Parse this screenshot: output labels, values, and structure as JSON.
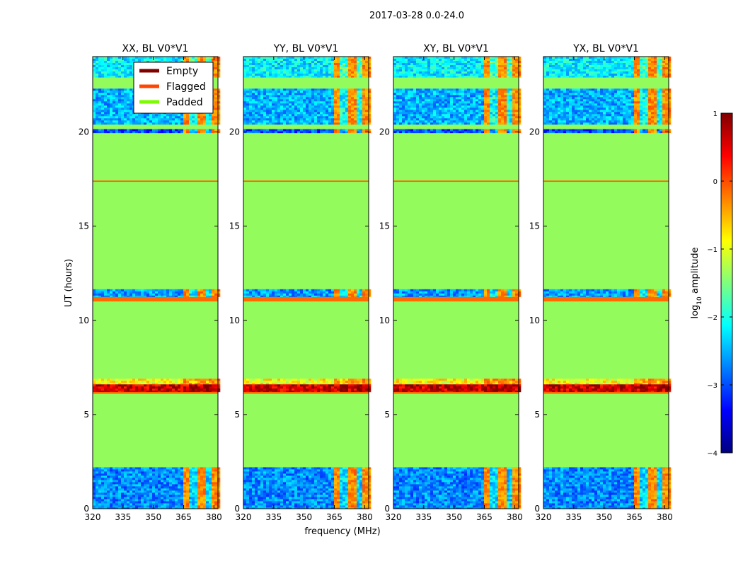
{
  "suptitle": "2017-03-28 0.0-24.0",
  "chart_data": {
    "type": "heatmap",
    "panels": [
      {
        "title": "XX, BL V0*V1"
      },
      {
        "title": "YY, BL V0*V1"
      },
      {
        "title": "XY, BL V0*V1"
      },
      {
        "title": "YX, BL V0*V1"
      }
    ],
    "xlabel": "frequency (MHz)",
    "ylabel": "UT (hours)",
    "xlim": [
      320,
      382
    ],
    "ylim": [
      0,
      24
    ],
    "xticks": [
      320,
      335,
      350,
      365,
      380
    ],
    "yticks": [
      0,
      5,
      10,
      15,
      20
    ],
    "bright_band_mhz": [
      364,
      382
    ],
    "legend": {
      "placement": "upper-right of first panel",
      "entries": [
        {
          "label": "Empty",
          "color": "#800000"
        },
        {
          "label": "Flagged",
          "color": "#ff4500"
        },
        {
          "label": "Padded",
          "color": "#7cfc00"
        }
      ]
    },
    "colorbar": {
      "label": "log10 amplitude",
      "label_main": "log",
      "label_sub": "10",
      "label_rest": " amplitude",
      "range": [
        -4,
        1
      ],
      "ticks": [
        "1",
        "0",
        "−1",
        "−2",
        "−3",
        "−4"
      ],
      "tick_values": [
        1,
        0,
        -1,
        -2,
        -3,
        -4
      ]
    },
    "padded_color": "#94fb5c",
    "flagged_color": "#ff6a00",
    "features": [
      {
        "kind": "data",
        "ut_start": 0.0,
        "ut_end": 2.2,
        "level": -2.7
      },
      {
        "kind": "data",
        "ut_start": 6.6,
        "ut_end": 6.9,
        "level": -0.9
      },
      {
        "kind": "data",
        "ut_start": 6.2,
        "ut_end": 6.6,
        "level": 0.6
      },
      {
        "kind": "flagged",
        "ut_start": 6.1,
        "ut_end": 6.2
      },
      {
        "kind": "flagged",
        "ut_start": 11.0,
        "ut_end": 11.25
      },
      {
        "kind": "data",
        "ut_start": 11.25,
        "ut_end": 11.65,
        "level": -2.6
      },
      {
        "kind": "flagged",
        "ut_start": 17.35,
        "ut_end": 17.42
      },
      {
        "kind": "data",
        "ut_start": 19.95,
        "ut_end": 20.15,
        "level": -3.0
      },
      {
        "kind": "data",
        "ut_start": 20.4,
        "ut_end": 22.3,
        "level": -2.5
      },
      {
        "kind": "data",
        "ut_start": 22.9,
        "ut_end": 24.0,
        "level": -2.2
      }
    ]
  }
}
